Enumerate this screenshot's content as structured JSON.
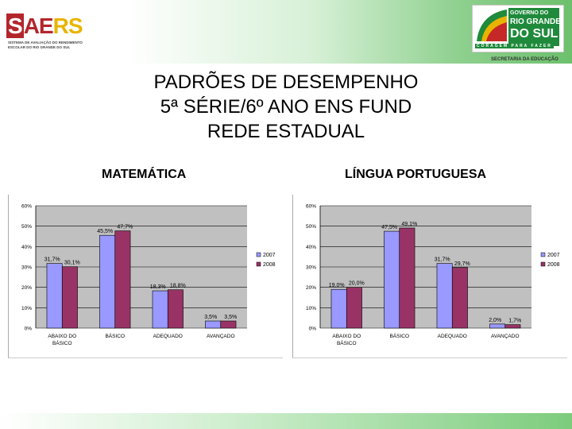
{
  "header": {
    "saers_logo_text": "SAERS",
    "saers_subtitle_line1": "SISTEMA DE AVALIAÇÃO DO RENDIMENTO",
    "saers_subtitle_line2": "ESCOLAR DO RIO GRANDE DO SUL",
    "gov_line1": "GOVERNO DO",
    "gov_line2": "RIO GRANDE",
    "gov_line3": "DO SUL",
    "gov_slogan": "CORAGEM PARA FAZER",
    "gov_dept": "SECRETARIA DA EDUCAÇÃO"
  },
  "title_lines": [
    "PADRÕES DE DESEMPENHO",
    "5ª SÉRIE/6º ANO ENS FUND",
    "REDE ESTADUAL"
  ],
  "colors": {
    "series_2007": "#9999ff",
    "series_2008": "#993366",
    "plot_bg": "#c0c0c0",
    "header_green": "#6cc06c"
  },
  "chart_data": [
    {
      "id": "matematica",
      "type": "bar",
      "title": "MATEMÁTICA",
      "categories": [
        [
          "ABAIXO DO",
          "BÁSICO"
        ],
        [
          "BÁSICO"
        ],
        [
          "ADEQUADO"
        ],
        [
          "AVANÇADO"
        ]
      ],
      "series": [
        {
          "name": "2007",
          "values": [
            31.7,
            45.5,
            18.3,
            3.5
          ],
          "labels": [
            "31,7%",
            "45,5%",
            "18,3%",
            "3,5%"
          ]
        },
        {
          "name": "2008",
          "values": [
            30.1,
            47.7,
            18.8,
            3.5
          ],
          "labels": [
            "30,1%",
            "47,7%",
            "18,8%",
            "3,5%"
          ]
        }
      ],
      "yticks": [
        "0%",
        "10%",
        "20%",
        "30%",
        "40%",
        "50%",
        "60%"
      ],
      "ylim": [
        0,
        60
      ],
      "legend_position": "right"
    },
    {
      "id": "portugues",
      "type": "bar",
      "title": "LÍNGUA PORTUGUESA",
      "categories": [
        [
          "ABAIXO DO",
          "BÁSICO"
        ],
        [
          "BÁSICO"
        ],
        [
          "ADEQUADO"
        ],
        [
          "AVANÇADO"
        ]
      ],
      "series": [
        {
          "name": "2007",
          "values": [
            19.0,
            47.5,
            31.7,
            2.0
          ],
          "labels": [
            "19,0%",
            "47,5%",
            "31,7%",
            "2,0%"
          ]
        },
        {
          "name": "2008",
          "values": [
            20.0,
            49.1,
            29.7,
            1.7
          ],
          "labels": [
            "20,0%",
            "49,1%",
            "29,7%",
            "1,7%"
          ]
        }
      ],
      "yticks": [
        "0%",
        "10%",
        "20%",
        "30%",
        "40%",
        "50%",
        "60%"
      ],
      "ylim": [
        0,
        60
      ],
      "legend_position": "right"
    }
  ]
}
